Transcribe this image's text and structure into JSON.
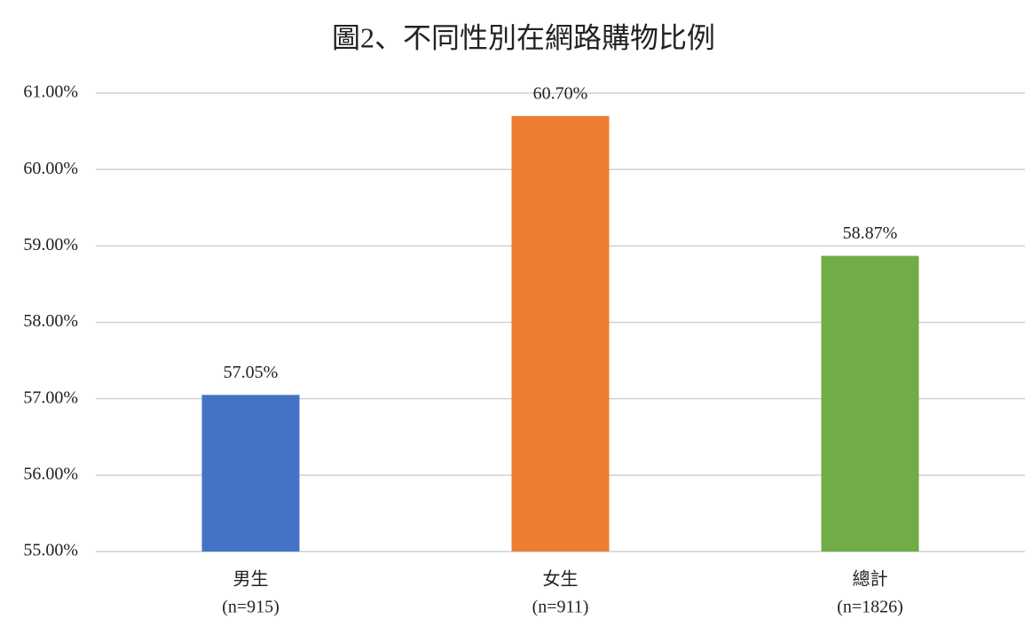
{
  "chart_data": {
    "type": "bar",
    "title": "圖2、不同性別在網路購物比例",
    "categories": [
      [
        "男生",
        "(n=915)"
      ],
      [
        "女生",
        "(n=911)"
      ],
      [
        "總計",
        "(n=1826)"
      ]
    ],
    "values": [
      57.05,
      60.7,
      58.87
    ],
    "value_labels": [
      "57.05%",
      "60.70%",
      "58.87%"
    ],
    "colors": [
      "#4472c4",
      "#ed7d31",
      "#70ad47"
    ],
    "ylim": [
      55,
      61
    ],
    "yticks": [
      {
        "value": 55,
        "label": "55.00%"
      },
      {
        "value": 56,
        "label": "56.00%"
      },
      {
        "value": 57,
        "label": "57.00%"
      },
      {
        "value": 58,
        "label": "58.00%"
      },
      {
        "value": 59,
        "label": "59.00%"
      },
      {
        "value": 60,
        "label": "60.00%"
      },
      {
        "value": 61,
        "label": "61.00%"
      }
    ],
    "grid": true
  }
}
